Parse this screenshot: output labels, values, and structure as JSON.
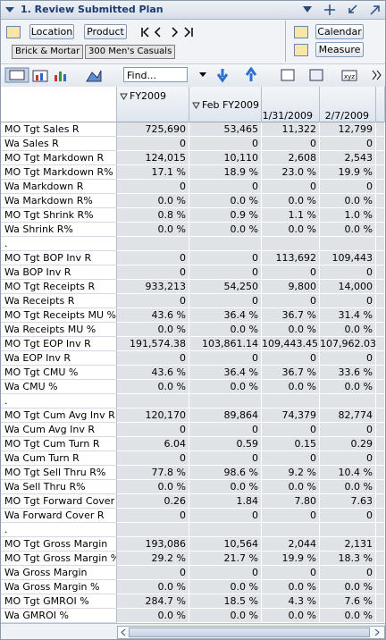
{
  "window": {
    "title": "1. Review Submitted Plan"
  },
  "toolbar": {
    "location": "Location",
    "product": "Product",
    "calendar": "Calendar",
    "measure": "Measure",
    "channel": "Brick & Mortar",
    "department": "300 Men's Casuals",
    "find": "Find..."
  },
  "table": {
    "columns": [
      "FY2009",
      "Feb FY2009",
      "1/31/2009",
      "2/7/2009"
    ],
    "rows": [
      [
        "MO Tgt Sales R",
        "725,690",
        "53,465",
        "11,322",
        "12,799"
      ],
      [
        "Wa Sales R",
        "0",
        "0",
        "0",
        "0"
      ],
      [
        "MO Tgt Markdown R",
        "124,015",
        "10,110",
        "2,608",
        "2,543"
      ],
      [
        "MO Tgt Markdown R%",
        "17.1 %",
        "18.9 %",
        "23.0 %",
        "19.9 %"
      ],
      [
        "Wa Markdown R",
        "0",
        "0",
        "0",
        "0"
      ],
      [
        "Wa Markdown R%",
        "0.0 %",
        "0.0 %",
        "0.0 %",
        "0.0 %"
      ],
      [
        "MO Tgt Shrink R%",
        "0.8 %",
        "0.9 %",
        "1.1 %",
        "1.0 %"
      ],
      [
        "Wa Shrink R%",
        "0.0 %",
        "0.0 %",
        "0.0 %",
        "0.0 %"
      ],
      [
        "."
      ],
      [
        "MO Tgt BOP Inv R",
        "0",
        "0",
        "113,692",
        "109,443"
      ],
      [
        "Wa BOP Inv R",
        "0",
        "0",
        "0",
        "0"
      ],
      [
        "MO Tgt Receipts R",
        "933,213",
        "54,250",
        "9,800",
        "14,000"
      ],
      [
        "Wa Receipts R",
        "0",
        "0",
        "0",
        "0"
      ],
      [
        "MO Tgt Receipts MU %",
        "43.6 %",
        "36.4 %",
        "36.7 %",
        "31.4 %"
      ],
      [
        "Wa Receipts MU %",
        "0.0 %",
        "0.0 %",
        "0.0 %",
        "0.0 %"
      ],
      [
        "MO Tgt EOP Inv R",
        "191,574.38",
        "103,861.14",
        "109,443.45",
        "107,962.03"
      ],
      [
        "Wa EOP Inv R",
        "0",
        "0",
        "0",
        "0"
      ],
      [
        "MO Tgt CMU %",
        "43.6 %",
        "36.4 %",
        "36.7 %",
        "33.6 %"
      ],
      [
        "Wa CMU %",
        "0.0 %",
        "0.0 %",
        "0.0 %",
        "0.0 %"
      ],
      [
        "."
      ],
      [
        "MO Tgt Cum Avg Inv R",
        "120,170",
        "89,864",
        "74,379",
        "82,774"
      ],
      [
        "Wa Cum Avg Inv R",
        "0",
        "0",
        "0",
        "0"
      ],
      [
        "MO Tgt Cum Turn R",
        "6.04",
        "0.59",
        "0.15",
        "0.29"
      ],
      [
        "Wa Cum Turn R",
        "0",
        "0",
        "0",
        "0"
      ],
      [
        "MO Tgt Sell Thru R%",
        "77.8 %",
        "98.6 %",
        "9.2 %",
        "10.4 %"
      ],
      [
        "Wa Sell Thru R%",
        "0.0 %",
        "0.0 %",
        "0.0 %",
        "0.0 %"
      ],
      [
        "MO Tgt Forward Cover R",
        "0.26",
        "1.84",
        "7.80",
        "7.63"
      ],
      [
        "Wa Forward Cover R",
        "0",
        "0",
        "0",
        "0"
      ],
      [
        "."
      ],
      [
        "MO Tgt Gross Margin",
        "193,086",
        "10,564",
        "2,044",
        "2,131"
      ],
      [
        "MO Tgt Gross Margin %",
        "29.2 %",
        "21.7 %",
        "19.9 %",
        "18.3 %"
      ],
      [
        "Wa Gross Margin",
        "0",
        "0",
        "0",
        "0"
      ],
      [
        "Wa Gross Margin %",
        "0.0 %",
        "0.0 %",
        "0.0 %",
        "0.0 %"
      ],
      [
        "MO Tgt GMROI %",
        "284.7 %",
        "18.5 %",
        "4.3 %",
        "7.6 %"
      ],
      [
        "Wa GMROI %",
        "0.0 %",
        "0.0 %",
        "0.0 %",
        "0.0 %"
      ]
    ]
  }
}
